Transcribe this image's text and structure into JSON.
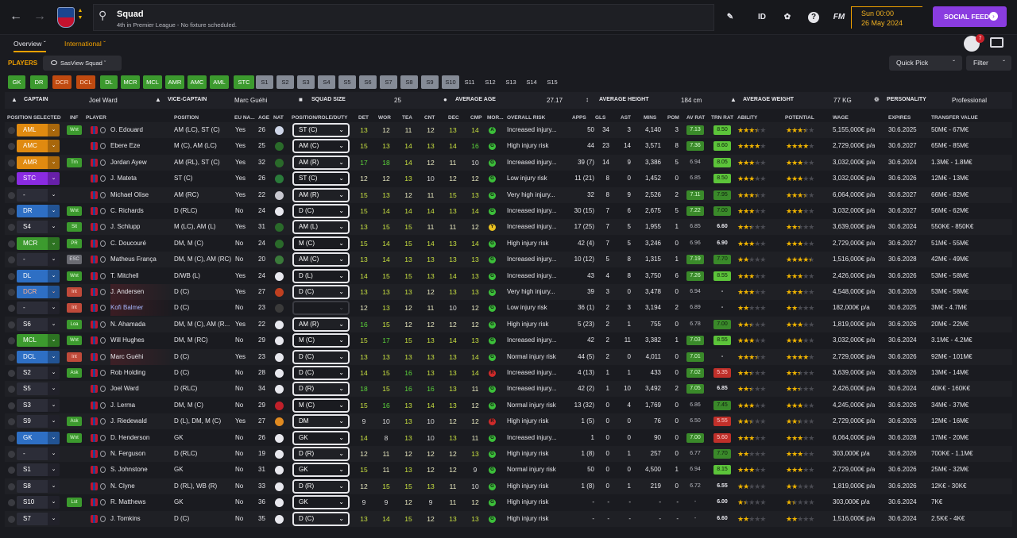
{
  "topbar": {
    "title": "Squad",
    "subtitle": "4th in Premier League - No fixture scheduled.",
    "id_label": "ID",
    "fm_label": "FM",
    "help_label": "?",
    "date_time": "Sun 00:00",
    "date_day": "26 May 2024",
    "social_feed": "SOCIAL FEED",
    "notifications": "7"
  },
  "tabs": {
    "overview": "Overview",
    "international": "International"
  },
  "players_bar": {
    "label": "PLAYERS",
    "view": "SasView Squad",
    "quick_pick": "Quick Pick",
    "filter": "Filter"
  },
  "chips": [
    "GK",
    "DR",
    "DCR",
    "DCL",
    "DL",
    "MCR",
    "MCL",
    "AMR",
    "AMC",
    "AML",
    "STC",
    "S1",
    "S2",
    "S3",
    "S4",
    "S5",
    "S6",
    "S7",
    "S8",
    "S9",
    "S10",
    "S11",
    "S12",
    "S13",
    "S14",
    "S15"
  ],
  "summary": {
    "captain_label": "CAPTAIN",
    "captain": "Joel Ward",
    "vice_label": "VICE-CAPTAIN",
    "vice": "Marc Guéhi",
    "size_label": "SQUAD SIZE",
    "size": "25",
    "age_label": "AVERAGE AGE",
    "age": "27.17",
    "height_label": "AVERAGE HEIGHT",
    "height": "184 cm",
    "weight_label": "AVERAGE WEIGHT",
    "weight": "77 KG",
    "personality_label": "PERSONALITY",
    "personality": "Professional"
  },
  "columns": [
    "POSITION SELECTED",
    "INF",
    "PLAYER",
    "POSITION",
    "EU NA...",
    "AGE",
    "NAT",
    "POSITION/ROLE/DUTY",
    "DET",
    "WOR",
    "TEA",
    "CNT",
    "DEC",
    "CMP",
    "MOR...",
    "OVERALL RISK",
    "APPS",
    "GLS",
    "AST",
    "MINS",
    "POM",
    "AV RAT",
    "TRN RAT",
    "ABILITY",
    "POTENTIAL",
    "WAGE",
    "EXPIRES",
    "TRANSFER VALUE"
  ],
  "colors": {
    "accent": "#f0a000",
    "social": "#8a3ce0",
    "green": "#3c9a2e"
  },
  "players": [
    {
      "sel": "AML",
      "inf": "Wnt",
      "name": "O. Edouard",
      "pos": "AM (LC), ST (C)",
      "eu": "Yes",
      "age": "26",
      "role": "ST (C)",
      "det": "13",
      "wor": "12",
      "tea": "11",
      "cnt": "12",
      "dec": "13",
      "cmp": "14",
      "mor": "A",
      "risk": "Increased injury...",
      "apps": "50",
      "gls": "34",
      "ast": "3",
      "mins": "4,140",
      "pom": "3",
      "avr": "7.13",
      "trn": "8.50",
      "ab": 3.5,
      "pot": 3.5,
      "wage": "5,155,000€ p/a",
      "exp": "30.6.2025",
      "val": "50M€ - 67M€"
    },
    {
      "sel": "AMC",
      "inf": "",
      "name": "Ebere Eze",
      "pos": "M (C), AM (LC)",
      "eu": "Yes",
      "age": "25",
      "role": "AM (C)",
      "det": "15",
      "wor": "13",
      "tea": "14",
      "cnt": "13",
      "dec": "14",
      "cmp": "16",
      "mor": "G",
      "risk": "High injury risk",
      "apps": "44",
      "gls": "23",
      "ast": "14",
      "mins": "3,571",
      "pom": "8",
      "avr": "7.36",
      "trn": "8.60",
      "ab": 4,
      "pot": 4,
      "wage": "2,729,000€ p/a",
      "exp": "30.6.2027",
      "val": "65M€ - 85M€"
    },
    {
      "sel": "AMR",
      "inf": "Trn",
      "name": "Jordan Ayew",
      "pos": "AM (RL), ST (C)",
      "eu": "Yes",
      "age": "32",
      "role": "AM (R)",
      "det": "17",
      "wor": "18",
      "tea": "14",
      "cnt": "12",
      "dec": "11",
      "cmp": "10",
      "mor": "G",
      "risk": "Increased injury...",
      "apps": "39 (7)",
      "gls": "14",
      "ast": "9",
      "mins": "3,386",
      "pom": "5",
      "avr": "6.94",
      "trn": "8.05",
      "ab": 3,
      "pot": 3,
      "wage": "3,032,000€ p/a",
      "exp": "30.6.2024",
      "val": "1.3M€ - 1.8M€"
    },
    {
      "sel": "STC",
      "inf": "",
      "name": "J. Mateta",
      "pos": "ST (C)",
      "eu": "Yes",
      "age": "26",
      "role": "ST (C)",
      "det": "12",
      "wor": "12",
      "tea": "13",
      "cnt": "10",
      "dec": "12",
      "cmp": "12",
      "mor": "G",
      "risk": "Low injury risk",
      "apps": "11 (21)",
      "gls": "8",
      "ast": "0",
      "mins": "1,452",
      "pom": "0",
      "avr": "6.85",
      "trn": "8.50",
      "ab": 3,
      "pot": 3,
      "wage": "3,032,000€ p/a",
      "exp": "30.6.2026",
      "val": "12M€ - 13M€"
    },
    {
      "sel": "-",
      "inf": "",
      "name": "Michael Olise",
      "pos": "AM (RC)",
      "eu": "Yes",
      "age": "22",
      "role": "AM (R)",
      "det": "15",
      "wor": "13",
      "tea": "12",
      "cnt": "11",
      "dec": "15",
      "cmp": "13",
      "mor": "G",
      "risk": "Very high injury...",
      "apps": "32",
      "gls": "8",
      "ast": "9",
      "mins": "2,526",
      "pom": "2",
      "avr": "7.11",
      "trn": "7.95",
      "ab": 3.5,
      "pot": 3.5,
      "wage": "6,064,000€ p/a",
      "exp": "30.6.2027",
      "val": "66M€ - 82M€"
    },
    {
      "sel": "DR",
      "inf": "Wnt",
      "name": "C. Richards",
      "pos": "D (RLC)",
      "eu": "No",
      "age": "24",
      "role": "D (C)",
      "det": "15",
      "wor": "14",
      "tea": "14",
      "cnt": "14",
      "dec": "13",
      "cmp": "14",
      "mor": "G",
      "risk": "Increased injury...",
      "apps": "30 (15)",
      "gls": "7",
      "ast": "6",
      "mins": "2,675",
      "pom": "5",
      "avr": "7.22",
      "trn": "7.00",
      "ab": 3,
      "pot": 3,
      "wage": "3,032,000€ p/a",
      "exp": "30.6.2027",
      "val": "56M€ - 62M€"
    },
    {
      "sel": "S4",
      "inf": "Slt",
      "name": "J. Schlupp",
      "pos": "M (LC), AM (L)",
      "eu": "Yes",
      "age": "31",
      "role": "AM (L)",
      "det": "13",
      "wor": "15",
      "tea": "15",
      "cnt": "11",
      "dec": "11",
      "cmp": "12",
      "mor": "Y",
      "risk": "Increased injury...",
      "apps": "17 (25)",
      "gls": "7",
      "ast": "5",
      "mins": "1,955",
      "pom": "1",
      "avr": "6.85",
      "trn": "6.60",
      "ab": 2.5,
      "pot": 2.5,
      "wage": "3,639,000€ p/a",
      "exp": "30.6.2024",
      "val": "550K€ - 850K€"
    },
    {
      "sel": "MCR",
      "inf": "PR",
      "name": "C. Doucouré",
      "pos": "DM, M (C)",
      "eu": "No",
      "age": "24",
      "role": "M (C)",
      "det": "15",
      "wor": "14",
      "tea": "15",
      "cnt": "14",
      "dec": "13",
      "cmp": "14",
      "mor": "G",
      "risk": "High injury risk",
      "apps": "42 (4)",
      "gls": "7",
      "ast": "5",
      "mins": "3,246",
      "pom": "0",
      "avr": "6.96",
      "trn": "6.90",
      "ab": 3,
      "pot": 3,
      "wage": "2,729,000€ p/a",
      "exp": "30.6.2027",
      "val": "51M€ - 55M€"
    },
    {
      "sel": "-",
      "inf": "ESC",
      "name": "Matheus França",
      "pos": "DM, M (C), AM (RC)",
      "eu": "No",
      "age": "20",
      "role": "AM (C)",
      "det": "13",
      "wor": "14",
      "tea": "13",
      "cnt": "13",
      "dec": "13",
      "cmp": "13",
      "mor": "G",
      "risk": "Increased injury...",
      "apps": "10 (12)",
      "gls": "5",
      "ast": "8",
      "mins": "1,315",
      "pom": "1",
      "avr": "7.19",
      "trn": "7.70",
      "ab": 2,
      "pot": 4.5,
      "wage": "1,516,000€ p/a",
      "exp": "30.6.2028",
      "val": "42M€ - 49M€"
    },
    {
      "sel": "DL",
      "inf": "Wnt",
      "name": "T. Mitchell",
      "pos": "D/WB (L)",
      "eu": "Yes",
      "age": "24",
      "role": "D (L)",
      "det": "14",
      "wor": "15",
      "tea": "15",
      "cnt": "13",
      "dec": "14",
      "cmp": "13",
      "mor": "G",
      "risk": "Increased injury...",
      "apps": "43",
      "gls": "4",
      "ast": "8",
      "mins": "3,750",
      "pom": "6",
      "avr": "7.26",
      "trn": "8.55",
      "ab": 3,
      "pot": 3,
      "wage": "2,426,000€ p/a",
      "exp": "30.6.2026",
      "val": "53M€ - 58M€"
    },
    {
      "sel": "DCR",
      "inf": "Int",
      "name": "J. Andersen",
      "pos": "D (C)",
      "eu": "Yes",
      "age": "27",
      "role": "D (C)",
      "det": "13",
      "wor": "13",
      "tea": "13",
      "cnt": "12",
      "dec": "13",
      "cmp": "13",
      "mor": "G",
      "risk": "Very high injury...",
      "apps": "39",
      "gls": "3",
      "ast": "0",
      "mins": "3,478",
      "pom": "0",
      "avr": "6.94",
      "trn": "-",
      "ab": 3,
      "pot": 3,
      "wage": "4,548,000€ p/a",
      "exp": "30.6.2026",
      "val": "53M€ - 58M€"
    },
    {
      "sel": "-",
      "inf": "Int",
      "name": "Kofi Balmer",
      "pos": "D (C)",
      "eu": "No",
      "age": "23",
      "role": "",
      "det": "12",
      "wor": "13",
      "tea": "12",
      "cnt": "11",
      "dec": "10",
      "cmp": "12",
      "mor": "G",
      "risk": "Low injury risk",
      "apps": "36 (1)",
      "gls": "2",
      "ast": "3",
      "mins": "3,194",
      "pom": "2",
      "avr": "6.89",
      "trn": "-",
      "ab": 2,
      "pot": 2,
      "wage": "182,000€ p/a",
      "exp": "30.6.2025",
      "val": "3M€ - 4.7M€"
    },
    {
      "sel": "S6",
      "inf": "Loa",
      "name": "N. Ahamada",
      "pos": "DM, M (C), AM (R...",
      "eu": "Yes",
      "age": "22",
      "role": "AM (R)",
      "det": "16",
      "wor": "15",
      "tea": "12",
      "cnt": "12",
      "dec": "12",
      "cmp": "12",
      "mor": "G",
      "risk": "High injury risk",
      "apps": "5 (23)",
      "gls": "2",
      "ast": "1",
      "mins": "755",
      "pom": "0",
      "avr": "6.78",
      "trn": "7.00",
      "ab": 2.5,
      "pot": 3,
      "wage": "1,819,000€ p/a",
      "exp": "30.6.2026",
      "val": "20M€ - 22M€"
    },
    {
      "sel": "MCL",
      "inf": "Wnt",
      "name": "Will Hughes",
      "pos": "DM, M (RC)",
      "eu": "No",
      "age": "29",
      "role": "M (C)",
      "det": "15",
      "wor": "17",
      "tea": "15",
      "cnt": "13",
      "dec": "14",
      "cmp": "13",
      "mor": "G",
      "risk": "Increased injury...",
      "apps": "42",
      "gls": "2",
      "ast": "11",
      "mins": "3,382",
      "pom": "1",
      "avr": "7.03",
      "trn": "8.55",
      "ab": 3,
      "pot": 3,
      "wage": "3,032,000€ p/a",
      "exp": "30.6.2024",
      "val": "3.1M€ - 4.2M€"
    },
    {
      "sel": "DCL",
      "inf": "Int",
      "name": "Marc Guéhi",
      "pos": "D (C)",
      "eu": "Yes",
      "age": "23",
      "role": "D (C)",
      "det": "13",
      "wor": "13",
      "tea": "13",
      "cnt": "13",
      "dec": "13",
      "cmp": "14",
      "mor": "G",
      "risk": "Normal injury risk",
      "apps": "44 (5)",
      "gls": "2",
      "ast": "0",
      "mins": "4,011",
      "pom": "0",
      "avr": "7.01",
      "trn": "-",
      "ab": 3.5,
      "pot": 4,
      "wage": "2,729,000€ p/a",
      "exp": "30.6.2026",
      "val": "92M€ - 101M€"
    },
    {
      "sel": "S2",
      "inf": "Ask",
      "name": "Rob Holding",
      "pos": "D (C)",
      "eu": "No",
      "age": "28",
      "role": "D (C)",
      "det": "14",
      "wor": "15",
      "tea": "16",
      "cnt": "13",
      "dec": "13",
      "cmp": "14",
      "mor": "R",
      "risk": "Increased injury...",
      "apps": "4 (13)",
      "gls": "1",
      "ast": "1",
      "mins": "433",
      "pom": "0",
      "avr": "7.02",
      "trn": "5.35",
      "ab": 2.5,
      "pot": 2.5,
      "wage": "3,639,000€ p/a",
      "exp": "30.6.2026",
      "val": "13M€ - 14M€"
    },
    {
      "sel": "S5",
      "inf": "",
      "name": "Joel Ward",
      "pos": "D (RLC)",
      "eu": "No",
      "age": "34",
      "role": "D (R)",
      "det": "18",
      "wor": "15",
      "tea": "16",
      "cnt": "16",
      "dec": "13",
      "cmp": "11",
      "mor": "G",
      "risk": "Increased injury...",
      "apps": "42 (2)",
      "gls": "1",
      "ast": "10",
      "mins": "3,492",
      "pom": "2",
      "avr": "7.05",
      "trn": "6.85",
      "ab": 2.5,
      "pot": 2.5,
      "wage": "2,426,000€ p/a",
      "exp": "30.6.2024",
      "val": "40K€ - 160K€"
    },
    {
      "sel": "S3",
      "inf": "",
      "name": "J. Lerma",
      "pos": "DM, M (C)",
      "eu": "No",
      "age": "29",
      "role": "M (C)",
      "det": "15",
      "wor": "16",
      "tea": "13",
      "cnt": "14",
      "dec": "13",
      "cmp": "12",
      "mor": "G",
      "risk": "Normal injury risk",
      "apps": "13 (32)",
      "gls": "0",
      "ast": "4",
      "mins": "1,769",
      "pom": "0",
      "avr": "6.86",
      "trn": "7.45",
      "ab": 3,
      "pot": 3,
      "wage": "4,245,000€ p/a",
      "exp": "30.6.2026",
      "val": "34M€ - 37M€"
    },
    {
      "sel": "S9",
      "inf": "Ask",
      "name": "J. Riedewald",
      "pos": "D (L), DM, M (C)",
      "eu": "Yes",
      "age": "27",
      "role": "DM",
      "det": "9",
      "wor": "10",
      "tea": "13",
      "cnt": "10",
      "dec": "12",
      "cmp": "12",
      "mor": "R",
      "risk": "High injury risk",
      "apps": "1 (5)",
      "gls": "0",
      "ast": "0",
      "mins": "76",
      "pom": "0",
      "avr": "6.50",
      "trn": "5.55",
      "ab": 2.5,
      "pot": 2.5,
      "wage": "2,729,000€ p/a",
      "exp": "30.6.2026",
      "val": "12M€ - 16M€"
    },
    {
      "sel": "GK",
      "inf": "Wnt",
      "name": "D. Henderson",
      "pos": "GK",
      "eu": "No",
      "age": "26",
      "role": "GK",
      "det": "14",
      "wor": "8",
      "tea": "13",
      "cnt": "10",
      "dec": "13",
      "cmp": "11",
      "mor": "G",
      "risk": "Increased injury...",
      "apps": "1",
      "gls": "0",
      "ast": "0",
      "mins": "90",
      "pom": "0",
      "avr": "7.00",
      "trn": "5.60",
      "ab": 3,
      "pot": 3,
      "wage": "6,064,000€ p/a",
      "exp": "30.6.2028",
      "val": "17M€ - 20M€"
    },
    {
      "sel": "-",
      "inf": "",
      "name": "N. Ferguson",
      "pos": "D (RLC)",
      "eu": "No",
      "age": "19",
      "role": "D (R)",
      "det": "12",
      "wor": "11",
      "tea": "12",
      "cnt": "12",
      "dec": "12",
      "cmp": "13",
      "mor": "G",
      "risk": "High injury risk",
      "apps": "1 (8)",
      "gls": "0",
      "ast": "1",
      "mins": "257",
      "pom": "0",
      "avr": "6.77",
      "trn": "7.70",
      "ab": 2,
      "pot": 3,
      "wage": "303,000€ p/a",
      "exp": "30.6.2026",
      "val": "700K€ - 1.1M€"
    },
    {
      "sel": "S1",
      "inf": "",
      "name": "S. Johnstone",
      "pos": "GK",
      "eu": "No",
      "age": "31",
      "role": "GK",
      "det": "15",
      "wor": "11",
      "tea": "13",
      "cnt": "12",
      "dec": "12",
      "cmp": "9",
      "mor": "G",
      "risk": "Normal injury risk",
      "apps": "50",
      "gls": "0",
      "ast": "0",
      "mins": "4,500",
      "pom": "1",
      "avr": "6.94",
      "trn": "8.15",
      "ab": 3,
      "pot": 3,
      "wage": "2,729,000€ p/a",
      "exp": "30.6.2026",
      "val": "25M€ - 32M€"
    },
    {
      "sel": "S8",
      "inf": "",
      "name": "N. Clyne",
      "pos": "D (RL), WB (R)",
      "eu": "No",
      "age": "33",
      "role": "D (R)",
      "det": "12",
      "wor": "15",
      "tea": "15",
      "cnt": "13",
      "dec": "11",
      "cmp": "10",
      "mor": "G",
      "risk": "High injury risk",
      "apps": "1 (8)",
      "gls": "0",
      "ast": "1",
      "mins": "219",
      "pom": "0",
      "avr": "6.72",
      "trn": "6.55",
      "ab": 2,
      "pot": 2,
      "wage": "1,819,000€ p/a",
      "exp": "30.6.2026",
      "val": "12K€ - 30K€"
    },
    {
      "sel": "S10",
      "inf": "Lst",
      "name": "R. Matthews",
      "pos": "GK",
      "eu": "No",
      "age": "36",
      "role": "GK",
      "det": "9",
      "wor": "9",
      "tea": "12",
      "cnt": "9",
      "dec": "11",
      "cmp": "12",
      "mor": "G",
      "risk": "High injury risk",
      "apps": "-",
      "gls": "-",
      "ast": "-",
      "mins": "-",
      "pom": "-",
      "avr": "-",
      "trn": "6.00",
      "ab": 1.5,
      "pot": 1.5,
      "wage": "303,000€ p/a",
      "exp": "30.6.2024",
      "val": "7K€"
    },
    {
      "sel": "S7",
      "inf": "",
      "name": "J. Tomkins",
      "pos": "D (C)",
      "eu": "No",
      "age": "35",
      "role": "D (C)",
      "det": "13",
      "wor": "14",
      "tea": "15",
      "cnt": "12",
      "dec": "13",
      "cmp": "13",
      "mor": "G",
      "risk": "High injury risk",
      "apps": "-",
      "gls": "-",
      "ast": "-",
      "mins": "-",
      "pom": "-",
      "avr": "-",
      "trn": "6.60",
      "ab": 2,
      "pot": 2,
      "wage": "1,516,000€ p/a",
      "exp": "30.6.2024",
      "val": "2.5K€ - 4K€"
    }
  ]
}
